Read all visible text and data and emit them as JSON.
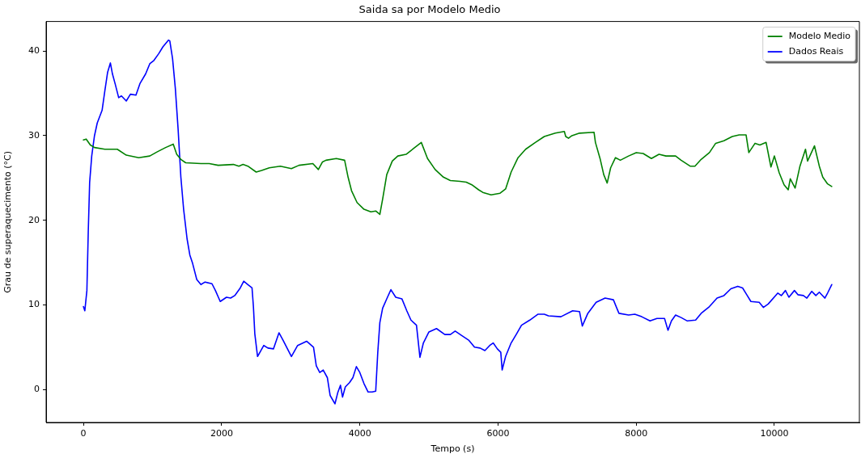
{
  "chart_data": {
    "type": "line",
    "title": "Saida sa por Modelo Medio",
    "xlabel": "Tempo (s)",
    "ylabel": "Grau de superaquecimento (°C)",
    "xlim": [
      -540,
      11230
    ],
    "ylim": [
      -3.9,
      43.5
    ],
    "xticks": [
      0,
      2000,
      4000,
      6000,
      8000,
      10000
    ],
    "yticks": [
      0,
      10,
      20,
      30,
      40
    ],
    "grid": false,
    "legend": "top right",
    "series": [
      {
        "name": "Modelo Medio",
        "color": "#008000",
        "x": [
          0,
          40,
          100,
          160,
          310,
          490,
          620,
          800,
          960,
          1070,
          1190,
          1300,
          1350,
          1410,
          1480,
          1700,
          1820,
          1950,
          2170,
          2250,
          2310,
          2380,
          2500,
          2580,
          2690,
          2850,
          3010,
          3120,
          3320,
          3400,
          3460,
          3510,
          3660,
          3780,
          3830,
          3880,
          3960,
          4060,
          4160,
          4230,
          4290,
          4330,
          4390,
          4470,
          4550,
          4670,
          4780,
          4890,
          4980,
          5090,
          5210,
          5310,
          5450,
          5540,
          5620,
          5720,
          5780,
          5900,
          6030,
          6110,
          6190,
          6290,
          6400,
          6540,
          6670,
          6830,
          6960,
          6980,
          7020,
          7070,
          7180,
          7390,
          7410,
          7480,
          7530,
          7580,
          7630,
          7700,
          7770,
          7890,
          8000,
          8100,
          8220,
          8330,
          8430,
          8570,
          8650,
          8780,
          8850,
          8940,
          9060,
          9150,
          9270,
          9390,
          9490,
          9590,
          9630,
          9720,
          9790,
          9880,
          9950,
          10000,
          10070,
          10140,
          10200,
          10230,
          10300,
          10370,
          10450,
          10480,
          10580,
          10650,
          10700,
          10770,
          10830
        ],
        "values": [
          29.5,
          29.6,
          28.9,
          28.6,
          28.4,
          28.4,
          27.7,
          27.4,
          27.6,
          28.1,
          28.6,
          29.0,
          27.8,
          27.2,
          26.8,
          26.7,
          26.7,
          26.5,
          26.6,
          26.4,
          26.6,
          26.4,
          25.7,
          25.9,
          26.2,
          26.4,
          26.1,
          26.5,
          26.7,
          26.0,
          26.9,
          27.1,
          27.3,
          27.1,
          25.1,
          23.5,
          22.1,
          21.3,
          21.0,
          21.1,
          20.7,
          22.5,
          25.4,
          27.0,
          27.6,
          27.8,
          28.5,
          29.2,
          27.3,
          26.0,
          25.1,
          24.7,
          24.6,
          24.5,
          24.2,
          23.6,
          23.3,
          23.0,
          23.2,
          23.7,
          25.7,
          27.4,
          28.4,
          29.2,
          29.9,
          30.3,
          30.5,
          29.9,
          29.7,
          30.0,
          30.3,
          30.4,
          29.2,
          27.2,
          25.4,
          24.4,
          26.2,
          27.4,
          27.1,
          27.6,
          28.0,
          27.9,
          27.3,
          27.8,
          27.6,
          27.6,
          27.1,
          26.4,
          26.4,
          27.2,
          28.0,
          29.1,
          29.4,
          29.9,
          30.1,
          30.1,
          28.0,
          29.1,
          28.9,
          29.2,
          26.3,
          27.6,
          25.6,
          24.2,
          23.6,
          24.9,
          23.8,
          26.4,
          28.4,
          27.0,
          28.8,
          26.4,
          25.1,
          24.3,
          24.0
        ]
      },
      {
        "name": "Dados Reais",
        "color": "#0000ff",
        "x": [
          0,
          20,
          50,
          70,
          90,
          120,
          160,
          200,
          270,
          310,
          350,
          390,
          420,
          460,
          510,
          550,
          620,
          680,
          760,
          820,
          900,
          960,
          1020,
          1090,
          1150,
          1230,
          1250,
          1290,
          1330,
          1370,
          1410,
          1450,
          1500,
          1540,
          1580,
          1640,
          1700,
          1760,
          1860,
          1910,
          1980,
          2070,
          2130,
          2190,
          2270,
          2320,
          2380,
          2440,
          2460,
          2480,
          2520,
          2610,
          2670,
          2750,
          2830,
          2890,
          3010,
          3100,
          3230,
          3330,
          3370,
          3420,
          3470,
          3530,
          3570,
          3640,
          3680,
          3720,
          3750,
          3790,
          3850,
          3900,
          3950,
          4000,
          4060,
          4120,
          4180,
          4230,
          4260,
          4290,
          4330,
          4400,
          4450,
          4520,
          4610,
          4680,
          4740,
          4820,
          4870,
          4920,
          5000,
          5110,
          5230,
          5310,
          5380,
          5470,
          5580,
          5660,
          5740,
          5810,
          5880,
          5930,
          5990,
          6040,
          6060,
          6110,
          6190,
          6270,
          6340,
          6460,
          6580,
          6670,
          6730,
          6910,
          7080,
          7180,
          7220,
          7300,
          7420,
          7550,
          7670,
          7750,
          7890,
          7980,
          8080,
          8200,
          8300,
          8410,
          8460,
          8510,
          8570,
          8650,
          8740,
          8860,
          8940,
          9060,
          9170,
          9270,
          9370,
          9470,
          9540,
          9600,
          9660,
          9780,
          9840,
          9910,
          10050,
          10100,
          10160,
          10210,
          10290,
          10340,
          10420,
          10470,
          10540,
          10600,
          10650,
          10730,
          10770,
          10830
        ],
        "values": [
          9.8,
          9.3,
          11.7,
          18.7,
          24.5,
          27.6,
          30.0,
          31.5,
          33.0,
          35.3,
          37.5,
          38.6,
          37.3,
          36.1,
          34.5,
          34.7,
          34.1,
          34.9,
          34.8,
          36.2,
          37.3,
          38.5,
          38.9,
          39.7,
          40.5,
          41.3,
          41.2,
          39.1,
          35.6,
          30.8,
          25.1,
          21.3,
          17.8,
          15.9,
          14.9,
          13.0,
          12.4,
          12.7,
          12.5,
          11.7,
          10.4,
          10.9,
          10.8,
          11.1,
          12.0,
          12.8,
          12.4,
          12.0,
          9.8,
          6.6,
          3.9,
          5.2,
          4.9,
          4.8,
          6.7,
          5.8,
          3.9,
          5.2,
          5.7,
          5.0,
          2.8,
          2.0,
          2.3,
          1.4,
          -0.7,
          -1.7,
          -0.4,
          0.5,
          -0.9,
          0.3,
          0.8,
          1.4,
          2.7,
          2.0,
          0.7,
          -0.3,
          -0.3,
          -0.2,
          4.4,
          7.9,
          9.6,
          10.9,
          11.8,
          10.9,
          10.7,
          9.3,
          8.2,
          7.6,
          3.8,
          5.5,
          6.8,
          7.2,
          6.5,
          6.5,
          6.9,
          6.4,
          5.8,
          5.0,
          4.9,
          4.6,
          5.2,
          5.5,
          4.8,
          4.4,
          2.3,
          3.9,
          5.5,
          6.6,
          7.6,
          8.2,
          8.9,
          8.9,
          8.7,
          8.6,
          9.3,
          9.2,
          7.5,
          9.0,
          10.3,
          10.8,
          10.6,
          9.0,
          8.8,
          8.9,
          8.6,
          8.1,
          8.4,
          8.4,
          7.0,
          8.1,
          8.8,
          8.5,
          8.1,
          8.2,
          9.0,
          9.8,
          10.8,
          11.1,
          11.9,
          12.2,
          12.0,
          11.2,
          10.4,
          10.3,
          9.7,
          10.1,
          11.4,
          11.1,
          11.7,
          10.9,
          11.7,
          11.2,
          11.1,
          10.8,
          11.6,
          11.1,
          11.5,
          10.8,
          11.4,
          12.4
        ]
      }
    ]
  }
}
